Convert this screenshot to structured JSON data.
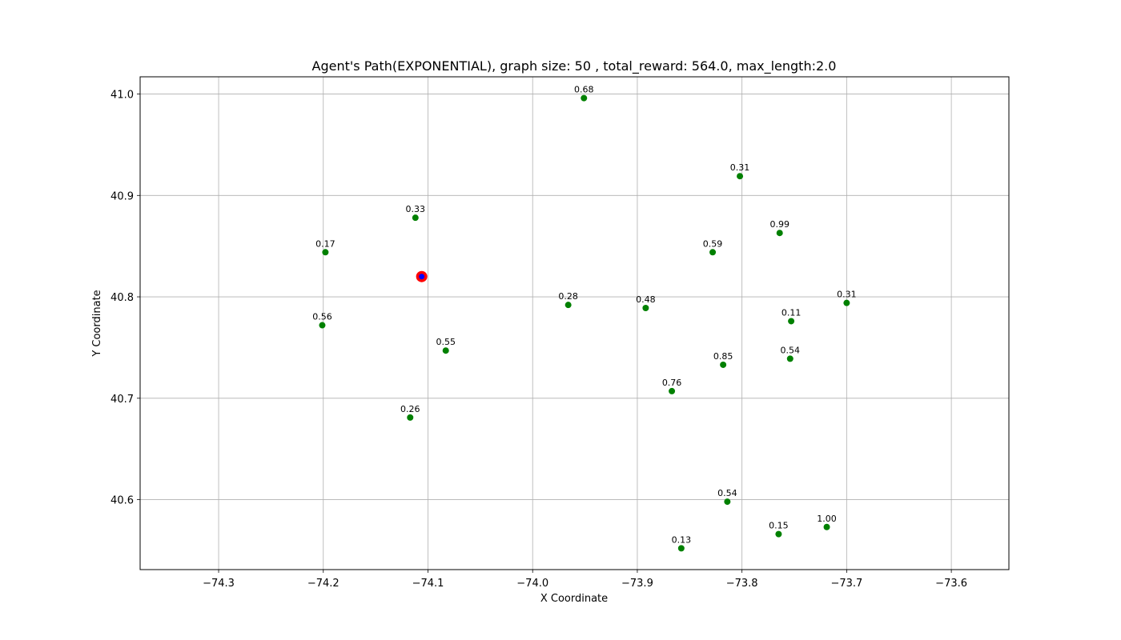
{
  "chart_data": {
    "type": "scatter",
    "title": "Agent's Path(EXPONENTIAL), graph size: 50 , total_reward: 564.0, max_length:2.0",
    "xlabel": "X Coordinate",
    "ylabel": "Y Coordinate",
    "xlim": [
      -74.375,
      -73.545
    ],
    "ylim": [
      40.531,
      41.017
    ],
    "xticks": [
      -74.3,
      -74.2,
      -74.1,
      -74.0,
      -73.9,
      -73.8,
      -73.7,
      -73.6
    ],
    "yticks": [
      40.6,
      40.7,
      40.8,
      40.9,
      41.0
    ],
    "xtick_labels": [
      "−74.3",
      "−74.2",
      "−74.1",
      "−74.0",
      "−73.9",
      "−73.8",
      "−73.7",
      "−73.6"
    ],
    "ytick_labels": [
      "40.6",
      "40.7",
      "40.8",
      "40.9",
      "41.0"
    ],
    "grid": true,
    "point_color": "#008000",
    "start_outer_color": "#ff0000",
    "start_inner_color": "#0000ff",
    "start": {
      "x": -74.106,
      "y": 40.82
    },
    "points": [
      {
        "x": -73.951,
        "y": 40.996,
        "label": "0.68"
      },
      {
        "x": -73.802,
        "y": 40.919,
        "label": "0.31"
      },
      {
        "x": -74.112,
        "y": 40.878,
        "label": "0.33"
      },
      {
        "x": -73.764,
        "y": 40.863,
        "label": "0.99"
      },
      {
        "x": -74.198,
        "y": 40.844,
        "label": "0.17"
      },
      {
        "x": -73.828,
        "y": 40.844,
        "label": "0.59"
      },
      {
        "x": -73.966,
        "y": 40.792,
        "label": "0.28"
      },
      {
        "x": -73.892,
        "y": 40.789,
        "label": "0.48"
      },
      {
        "x": -73.7,
        "y": 40.794,
        "label": "0.31"
      },
      {
        "x": -73.753,
        "y": 40.776,
        "label": "0.11"
      },
      {
        "x": -74.201,
        "y": 40.772,
        "label": "0.56"
      },
      {
        "x": -74.083,
        "y": 40.747,
        "label": "0.55"
      },
      {
        "x": -73.818,
        "y": 40.733,
        "label": "0.85"
      },
      {
        "x": -73.754,
        "y": 40.739,
        "label": "0.54"
      },
      {
        "x": -73.867,
        "y": 40.707,
        "label": "0.76"
      },
      {
        "x": -74.117,
        "y": 40.681,
        "label": "0.26"
      },
      {
        "x": -73.814,
        "y": 40.598,
        "label": "0.54"
      },
      {
        "x": -73.765,
        "y": 40.566,
        "label": "0.15"
      },
      {
        "x": -73.719,
        "y": 40.573,
        "label": "1.00"
      },
      {
        "x": -73.858,
        "y": 40.552,
        "label": "0.13"
      }
    ]
  }
}
